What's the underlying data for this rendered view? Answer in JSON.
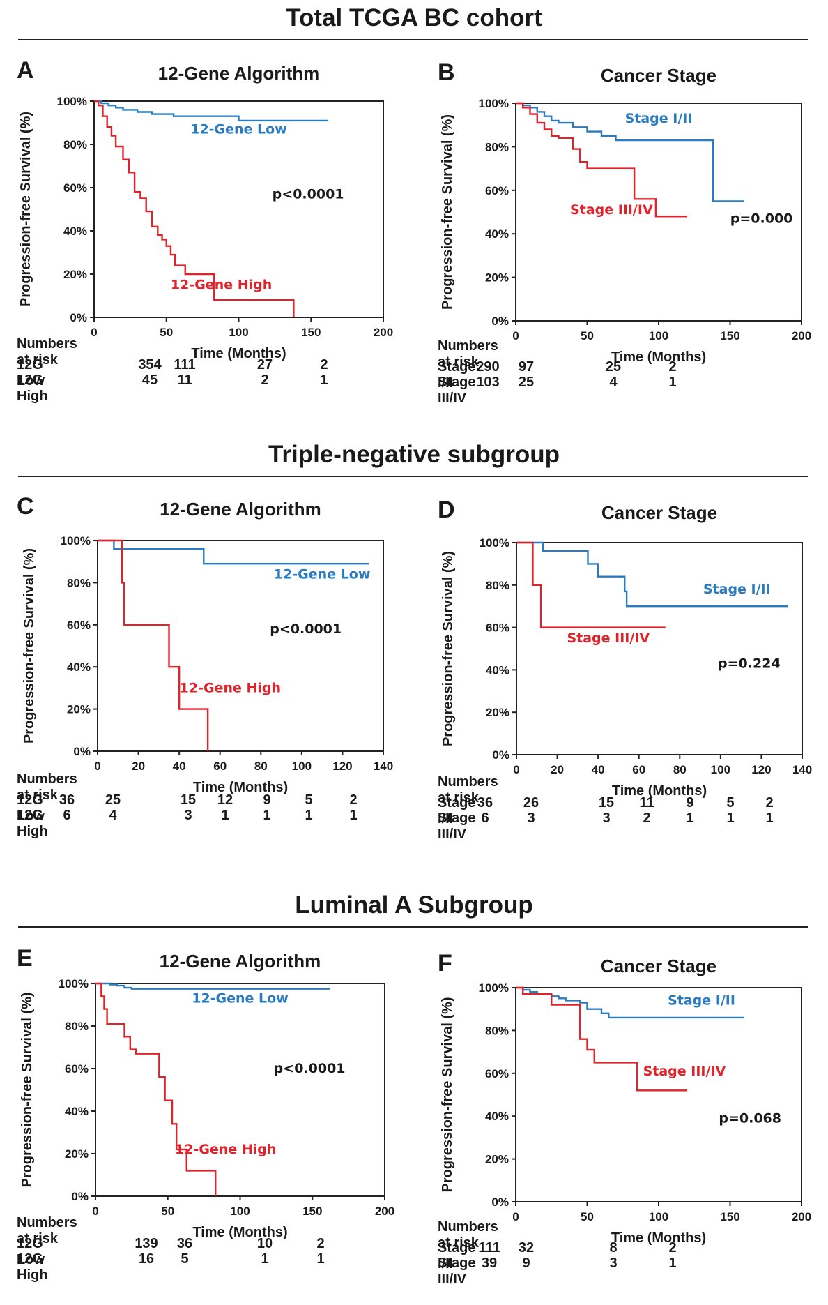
{
  "sections": [
    {
      "title": "Total TCGA BC cohort"
    },
    {
      "title": "Triple-negative subgroup"
    },
    {
      "title": "Luminal A Subgroup"
    }
  ],
  "colors": {
    "low": "#2a7bc0",
    "high": "#e0222a"
  },
  "chart_data": [
    {
      "panel": "A",
      "type": "line",
      "title": "12-Gene Algorithm",
      "xlabel": "Time (Months)",
      "ylabel": "Progression-free Survival (%)",
      "xlim": [
        0,
        200
      ],
      "ylim": [
        0,
        100
      ],
      "xticks": [
        "0",
        "50",
        "100",
        "150",
        "200"
      ],
      "yticks": [
        "0%",
        "20%",
        "40%",
        "60%",
        "80%",
        "100%"
      ],
      "pvalue": "p<0.0001",
      "series": [
        {
          "name": "12-Gene Low",
          "color": "#2a7bc0",
          "x": [
            0,
            5,
            10,
            15,
            20,
            30,
            40,
            55,
            70,
            100,
            162
          ],
          "y": [
            100,
            99,
            98,
            97,
            96,
            95,
            94,
            93,
            93,
            91,
            91
          ]
        },
        {
          "name": "12-Gene High",
          "color": "#e0222a",
          "x": [
            0,
            3,
            6,
            9,
            12,
            15,
            20,
            24,
            28,
            32,
            36,
            40,
            44,
            47,
            50,
            53,
            56,
            63,
            80,
            83,
            100,
            138,
            138
          ],
          "y": [
            100,
            98,
            93,
            88,
            84,
            79,
            73,
            67,
            58,
            55,
            49,
            42,
            38,
            36,
            33,
            29,
            24,
            20,
            20,
            8,
            8,
            8,
            0
          ]
        }
      ],
      "annotations": [
        {
          "text": "12-Gene Low",
          "series": 0,
          "x": 100,
          "y": 85
        },
        {
          "text": "12-Gene High",
          "series": 1,
          "x": 88,
          "y": 13
        },
        {
          "text": "p<0.0001",
          "x": 148,
          "y": 55
        }
      ],
      "risk": {
        "header": "Numbers at risk",
        "rows": [
          {
            "label": "12G Low",
            "values": [
              "354",
              "111",
              "27",
              "2"
            ]
          },
          {
            "label": "12G High",
            "values": [
              "45",
              "11",
              "2",
              "1"
            ]
          }
        ]
      }
    },
    {
      "panel": "B",
      "type": "line",
      "title": "Cancer Stage",
      "xlabel": "Time (Months)",
      "ylabel": "Progression-free Survival (%)",
      "xlim": [
        0,
        200
      ],
      "ylim": [
        0,
        100
      ],
      "xticks": [
        "0",
        "50",
        "100",
        "150",
        "200"
      ],
      "yticks": [
        "0%",
        "20%",
        "40%",
        "60%",
        "80%",
        "100%"
      ],
      "pvalue": "p=0.000",
      "series": [
        {
          "name": "Stage I/II",
          "color": "#2a7bc0",
          "x": [
            0,
            5,
            10,
            15,
            20,
            25,
            30,
            40,
            50,
            60,
            70,
            138,
            138,
            160
          ],
          "y": [
            100,
            99,
            98,
            96,
            94,
            92,
            91,
            89,
            87,
            85,
            83,
            83,
            55,
            55
          ]
        },
        {
          "name": "Stage III/IV",
          "color": "#e0222a",
          "x": [
            0,
            5,
            10,
            15,
            20,
            25,
            30,
            40,
            45,
            50,
            83,
            83,
            98,
            98,
            120
          ],
          "y": [
            100,
            98,
            95,
            91,
            88,
            85,
            84,
            79,
            73,
            70,
            70,
            56,
            56,
            48,
            48
          ]
        }
      ],
      "annotations": [
        {
          "text": "Stage I/II",
          "series": 0,
          "x": 100,
          "y": 91
        },
        {
          "text": "Stage III/IV",
          "series": 1,
          "x": 67,
          "y": 49
        },
        {
          "text": "p=0.000",
          "x": 172,
          "y": 45
        }
      ],
      "risk": {
        "header": "Numbers at risk",
        "rows": [
          {
            "label": "Stage I/II",
            "values": [
              "290",
              "97",
              "25",
              "2"
            ]
          },
          {
            "label": "Stage III/IV",
            "values": [
              "103",
              "25",
              "4",
              "1"
            ]
          }
        ]
      }
    },
    {
      "panel": "C",
      "type": "line",
      "title": "12-Gene Algorithm",
      "xlabel": "Time (Months)",
      "ylabel": "Progression-free Survival (%)",
      "xlim": [
        0,
        140
      ],
      "ylim": [
        0,
        100
      ],
      "xticks": [
        "0",
        "20",
        "40",
        "60",
        "80",
        "100",
        "120",
        "140"
      ],
      "yticks": [
        "0%",
        "20%",
        "40%",
        "60%",
        "80%",
        "100%"
      ],
      "pvalue": "p<0.0001",
      "series": [
        {
          "name": "12-Gene Low",
          "color": "#2a7bc0",
          "x": [
            0,
            8,
            52,
            52,
            133
          ],
          "y": [
            100,
            96,
            96,
            89,
            89
          ]
        },
        {
          "name": "12-Gene High",
          "color": "#e0222a",
          "x": [
            0,
            12,
            12,
            13,
            13,
            35,
            35,
            40,
            40,
            54,
            54
          ],
          "y": [
            100,
            100,
            80,
            80,
            60,
            60,
            40,
            40,
            20,
            20,
            0
          ]
        }
      ],
      "annotations": [
        {
          "text": "12-Gene Low",
          "series": 0,
          "x": 110,
          "y": 82
        },
        {
          "text": "12-Gene High",
          "series": 1,
          "x": 65,
          "y": 28
        },
        {
          "text": "p<0.0001",
          "x": 102,
          "y": 56
        }
      ],
      "risk": {
        "header": "Numbers at risk",
        "rows": [
          {
            "label": "12G Low",
            "values": [
              "36",
              "25",
              "15",
              "12",
              "9",
              "5",
              "2"
            ]
          },
          {
            "label": "12G High",
            "values": [
              "6",
              "4",
              "3",
              "1",
              "1",
              "1",
              "1"
            ]
          }
        ]
      }
    },
    {
      "panel": "D",
      "type": "line",
      "title": "Cancer Stage",
      "xlabel": "Time (Months)",
      "ylabel": "Progression-free Survival (%)",
      "xlim": [
        0,
        140
      ],
      "ylim": [
        0,
        100
      ],
      "xticks": [
        "0",
        "20",
        "40",
        "60",
        "80",
        "100",
        "120",
        "140"
      ],
      "yticks": [
        "0%",
        "20%",
        "40%",
        "60%",
        "80%",
        "100%"
      ],
      "pvalue": "p=0.224",
      "series": [
        {
          "name": "Stage I/II",
          "color": "#2a7bc0",
          "x": [
            0,
            13,
            13,
            35,
            35,
            40,
            40,
            53,
            53,
            54,
            54,
            133
          ],
          "y": [
            100,
            100,
            96,
            96,
            90,
            90,
            84,
            84,
            77,
            77,
            70,
            70
          ]
        },
        {
          "name": "Stage III/IV",
          "color": "#e0222a",
          "x": [
            0,
            8,
            8,
            12,
            12,
            73
          ],
          "y": [
            100,
            100,
            80,
            80,
            60,
            60
          ]
        }
      ],
      "annotations": [
        {
          "text": "Stage I/II",
          "series": 0,
          "x": 108,
          "y": 76
        },
        {
          "text": "Stage III/IV",
          "series": 1,
          "x": 45,
          "y": 53
        },
        {
          "text": "p=0.224",
          "x": 114,
          "y": 41
        }
      ],
      "risk": {
        "header": "Numbers at risk",
        "rows": [
          {
            "label": "Stage I/II",
            "values": [
              "36",
              "26",
              "15",
              "11",
              "9",
              "5",
              "2"
            ]
          },
          {
            "label": "Stage III/IV",
            "values": [
              "6",
              "3",
              "3",
              "2",
              "1",
              "1",
              "1"
            ]
          }
        ]
      }
    },
    {
      "panel": "E",
      "type": "line",
      "title": "12-Gene Algorithm",
      "xlabel": "Time (Months)",
      "ylabel": "Progression-free Survival (%)",
      "xlim": [
        0,
        200
      ],
      "ylim": [
        0,
        100
      ],
      "xticks": [
        "0",
        "50",
        "100",
        "150",
        "200"
      ],
      "yticks": [
        "0%",
        "20%",
        "40%",
        "60%",
        "80%",
        "100%"
      ],
      "pvalue": "p<0.0001",
      "series": [
        {
          "name": "12-Gene Low",
          "color": "#2a7bc0",
          "x": [
            0,
            10,
            15,
            20,
            25,
            100,
            162
          ],
          "y": [
            100,
            99.5,
            99,
            98,
            97.5,
            97.5,
            97.5
          ]
        },
        {
          "name": "12-Gene High",
          "color": "#e0222a",
          "x": [
            0,
            4,
            4,
            6,
            6,
            8,
            8,
            20,
            20,
            24,
            24,
            28,
            28,
            44,
            44,
            48,
            48,
            53,
            53,
            56,
            56,
            63,
            63,
            83,
            83
          ],
          "y": [
            100,
            100,
            94,
            94,
            88,
            88,
            81,
            81,
            75,
            75,
            69,
            69,
            67,
            67,
            56,
            56,
            45,
            45,
            34,
            34,
            22,
            22,
            12,
            12,
            0
          ]
        }
      ],
      "annotations": [
        {
          "text": "12-Gene Low",
          "series": 0,
          "x": 100,
          "y": 91
        },
        {
          "text": "12-Gene High",
          "series": 1,
          "x": 90,
          "y": 20
        },
        {
          "text": "p<0.0001",
          "x": 148,
          "y": 58
        }
      ],
      "risk": {
        "header": "Numbers at risk",
        "rows": [
          {
            "label": "12G Low",
            "values": [
              "139",
              "36",
              "10",
              "2"
            ]
          },
          {
            "label": "12G High",
            "values": [
              "16",
              "5",
              "1",
              "1"
            ]
          }
        ]
      }
    },
    {
      "panel": "F",
      "type": "line",
      "title": "Cancer Stage",
      "xlabel": "Time (Months)",
      "ylabel": "Progression-free Survival (%)",
      "xlim": [
        0,
        200
      ],
      "ylim": [
        0,
        100
      ],
      "xticks": [
        "0",
        "50",
        "100",
        "150",
        "200"
      ],
      "yticks": [
        "0%",
        "20%",
        "40%",
        "60%",
        "80%",
        "100%"
      ],
      "pvalue": "p=0.068",
      "series": [
        {
          "name": "Stage I/II",
          "color": "#2a7bc0",
          "x": [
            0,
            5,
            10,
            15,
            25,
            30,
            35,
            45,
            50,
            60,
            65,
            160
          ],
          "y": [
            100,
            99,
            98,
            97,
            96,
            95,
            94,
            93,
            90,
            88,
            86,
            86
          ]
        },
        {
          "name": "Stage III/IV",
          "color": "#e0222a",
          "x": [
            0,
            5,
            5,
            25,
            25,
            45,
            45,
            50,
            50,
            55,
            55,
            85,
            85,
            120
          ],
          "y": [
            100,
            100,
            97,
            97,
            92,
            92,
            76,
            76,
            71,
            71,
            65,
            65,
            52,
            52
          ]
        }
      ],
      "annotations": [
        {
          "text": "Stage I/II",
          "series": 0,
          "x": 130,
          "y": 92
        },
        {
          "text": "Stage III/IV",
          "series": 1,
          "x": 118,
          "y": 59
        },
        {
          "text": "p=0.068",
          "x": 164,
          "y": 37
        }
      ],
      "risk": {
        "header": "Numbers at risk",
        "rows": [
          {
            "label": "Stage I/II",
            "values": [
              "111",
              "32",
              "8",
              "2"
            ]
          },
          {
            "label": "Stage III/IV",
            "values": [
              "39",
              "9",
              "3",
              "1"
            ]
          }
        ]
      }
    }
  ]
}
